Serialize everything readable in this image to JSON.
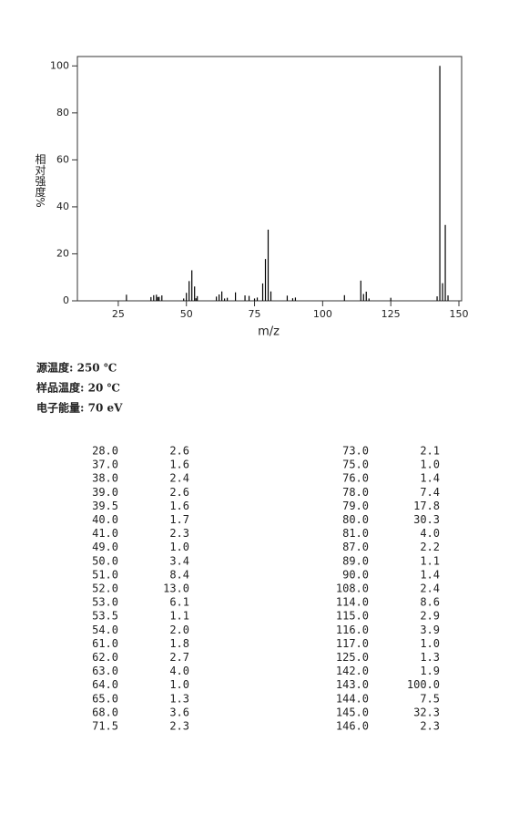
{
  "chart_data": {
    "type": "bar",
    "xlabel": "m/z",
    "ylabel": "相对强度%",
    "xlim": [
      10,
      151
    ],
    "xticks": [
      25,
      50,
      75,
      100,
      125,
      150
    ],
    "ylim": [
      0,
      104
    ],
    "yticks": [
      0,
      20,
      40,
      60,
      80,
      100
    ],
    "color": "#000000",
    "x": [
      28,
      37,
      38,
      39,
      39.5,
      40,
      41,
      49,
      50,
      51,
      52,
      53,
      53.5,
      54,
      61,
      62,
      63,
      64,
      65,
      68,
      71.5,
      73,
      75,
      76,
      78,
      79,
      80,
      81,
      87,
      89,
      90,
      108,
      114,
      115,
      116,
      117,
      125,
      142,
      143,
      144,
      145,
      146
    ],
    "x_labels": [
      "28.0",
      "37.0",
      "38.0",
      "39.0",
      "39.5",
      "40.0",
      "41.0",
      "49.0",
      "50.0",
      "51.0",
      "52.0",
      "53.0",
      "53.5",
      "54.0",
      "61.0",
      "62.0",
      "63.0",
      "64.0",
      "65.0",
      "68.0",
      "71.5",
      "73.0",
      "75.0",
      "76.0",
      "78.0",
      "79.0",
      "80.0",
      "81.0",
      "87.0",
      "89.0",
      "90.0",
      "108.0",
      "114.0",
      "115.0",
      "116.0",
      "117.0",
      "125.0",
      "142.0",
      "143.0",
      "144.0",
      "145.0",
      "146.0"
    ],
    "values": [
      2.6,
      1.6,
      2.4,
      2.6,
      1.6,
      1.7,
      2.3,
      1.0,
      3.4,
      8.4,
      13.0,
      6.1,
      1.1,
      2.0,
      1.8,
      2.7,
      4.0,
      1.0,
      1.3,
      3.6,
      2.3,
      2.1,
      1.0,
      1.4,
      7.4,
      17.8,
      30.3,
      4.0,
      2.2,
      1.1,
      1.4,
      2.4,
      8.6,
      2.9,
      3.9,
      1.0,
      1.3,
      1.9,
      100.0,
      7.5,
      32.3,
      2.3
    ],
    "value_labels": [
      "2.6",
      "1.6",
      "2.4",
      "2.6",
      "1.6",
      "1.7",
      "2.3",
      "1.0",
      "3.4",
      "8.4",
      "13.0",
      "6.1",
      "1.1",
      "2.0",
      "1.8",
      "2.7",
      "4.0",
      "1.0",
      "1.3",
      "3.6",
      "2.3",
      "2.1",
      "1.0",
      "1.4",
      "7.4",
      "17.8",
      "30.3",
      "4.0",
      "2.2",
      "1.1",
      "1.4",
      "2.4",
      "8.6",
      "2.9",
      "3.9",
      "1.0",
      "1.3",
      "1.9",
      "100.0",
      "7.5",
      "32.3",
      "2.3"
    ]
  },
  "conditions": [
    "源温度: 250 ℃",
    "样品温度: 20 ℃",
    "电子能量: 70 eV"
  ]
}
